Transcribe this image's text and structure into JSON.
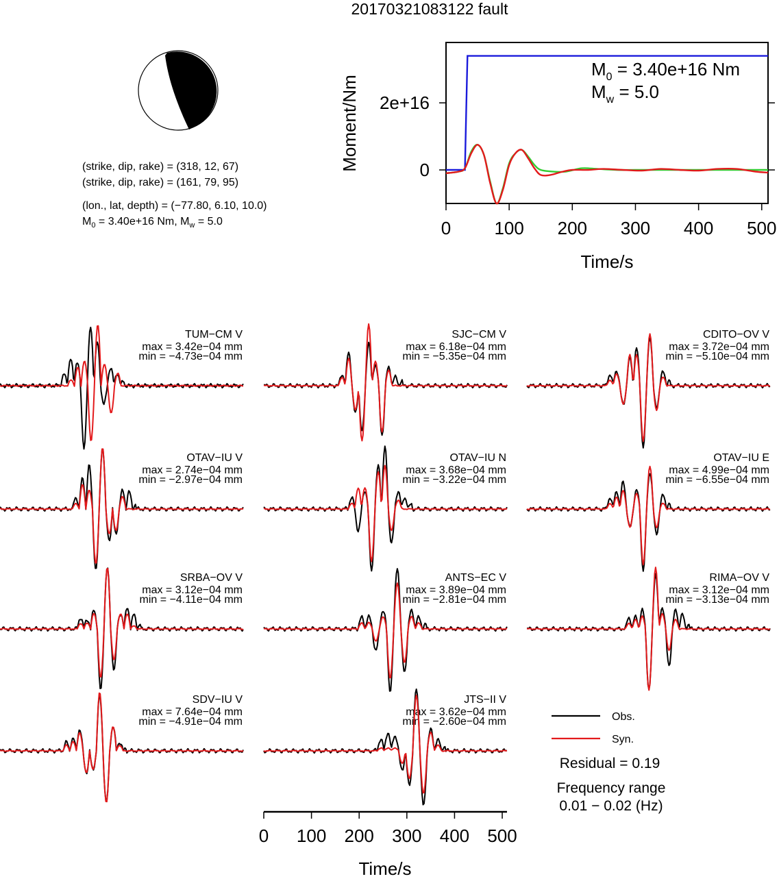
{
  "title": "20170321083122 fault",
  "mechanism": {
    "plane1": "(strike, dip, rake) = (318, 12, 67)",
    "plane2": "(strike, dip, rake) = (161, 79, 95)",
    "location": "(lon., lat, depth) = (−77.80, 6.10, 10.0)",
    "m0_prefix": "M",
    "m0_sub": "0",
    "m0_rest": " = 3.40e+16 Nm, M",
    "mw_sub": "w",
    "mw_rest": " = 5.0"
  },
  "legend": {
    "obs": "Obs.",
    "syn": "Syn."
  },
  "residual": "Residual = 0.19",
  "freq_title": "Frequency range",
  "freq_value": "0.01 − 0.02 (Hz)",
  "colors": {
    "obs": "#000000",
    "syn": "#e31a1c",
    "stf": "#1a1adb",
    "green": "#33cc33"
  },
  "chart_data": [
    {
      "type": "line",
      "name": "moment-rate-function",
      "ylabel": "Moment/Nm",
      "xlabel": "Time/s",
      "xlim": [
        0,
        510
      ],
      "ylim": [
        -1e+16,
        3.8e+16
      ],
      "xticks": [
        0,
        100,
        200,
        300,
        400,
        500
      ],
      "xtick_labels": [
        "0",
        "100",
        "200",
        "300",
        "400",
        "500"
      ],
      "yticks": [
        0,
        2e+16
      ],
      "ytick_labels": [
        "0",
        "2e+16"
      ],
      "annotation": {
        "m0_prefix": "M",
        "m0_sub": "0",
        "m0_rest": " = 3.40e+16 Nm",
        "mw_prefix": "M",
        "mw_sub": "w",
        "mw_rest": " = 5.0"
      },
      "series": [
        {
          "color": "#1a1adb",
          "x": [
            0,
            30,
            32,
            34,
            510
          ],
          "y": [
            0,
            0,
            1.8e+16,
            3.4e+16,
            3.4e+16
          ]
        },
        {
          "color": "#33cc33",
          "x": [
            0,
            20,
            30,
            40,
            50,
            60,
            70,
            80,
            90,
            100,
            110,
            120,
            130,
            140,
            150,
            170,
            190,
            215,
            240,
            270,
            300,
            340,
            380,
            420,
            460,
            510
          ],
          "y": [
            -1000000000000000.0,
            -500000000000000.0,
            500000000000000.0,
            5500000000000000.0,
            7500000000000000.0,
            4500000000000000.0,
            -3500000000000000.0,
            -1e+16,
            -5500000000000000.0,
            2000000000000000.0,
            5000000000000000.0,
            6000000000000000.0,
            4000000000000000.0,
            1500000000000000.0,
            0.0,
            -500000000000000.0,
            -500000000000000.0,
            500000000000000.0,
            300000000000000.0,
            0.0,
            0.0,
            0.0,
            0.0,
            0.0,
            0.0,
            0.0
          ]
        },
        {
          "color": "#e31a1c",
          "x": [
            0,
            20,
            30,
            40,
            50,
            60,
            70,
            80,
            90,
            100,
            110,
            120,
            130,
            140,
            150,
            165,
            185,
            200,
            225,
            250,
            280,
            310,
            340,
            370,
            400,
            430,
            460,
            490,
            510
          ],
          "y": [
            -1000000000000000.0,
            -500000000000000.0,
            500000000000000.0,
            5000000000000000.0,
            7500000000000000.0,
            4500000000000000.0,
            -4000000000000000.0,
            -1e+16,
            -6000000000000000.0,
            1500000000000000.0,
            5000000000000000.0,
            6000000000000000.0,
            3500000000000000.0,
            500000000000000.0,
            -1500000000000000.0,
            -1500000000000000.0,
            -500000000000000.0,
            0.0,
            0.0,
            300000000000000.0,
            0.0,
            -200000000000000.0,
            300000000000000.0,
            0.0,
            -200000000000000.0,
            300000000000000.0,
            300000000000000.0,
            -500000000000000.0,
            -800000000000000.0
          ]
        }
      ]
    },
    {
      "type": "line",
      "name": "waveform-fits",
      "xlabel": "Time/s",
      "xlim": [
        0,
        510
      ],
      "xticks": [
        0,
        100,
        200,
        300,
        400,
        500
      ],
      "xtick_labels": [
        "0",
        "100",
        "200",
        "300",
        "400",
        "500"
      ],
      "stations": [
        {
          "label": "TUM−CM V",
          "max": "max = 3.42e−04 mm",
          "min": "min = −4.73e−04 mm",
          "obs": {
            "c": 190,
            "w": 14,
            "s": [
              0.01,
              0.2,
              0.45,
              0.4,
              -1.0,
              0.95,
              0.7,
              -0.3,
              0.3,
              0.22,
              0.1
            ]
          },
          "syn": {
            "c": 205,
            "w": 14,
            "s": [
              0.0,
              0.1,
              0.3,
              0.4,
              -0.9,
              1.0,
              0.35,
              -0.45,
              0.2,
              0.0,
              0.0
            ]
          }
        },
        {
          "label": "SJC−CM V",
          "max": "max = 6.18e−04 mm",
          "min": "min = −5.35e−04 mm",
          "obs": {
            "c": 220,
            "w": 14,
            "s": [
              0.01,
              0.2,
              0.55,
              -0.45,
              -0.75,
              0.7,
              0.35,
              -0.8,
              0.3,
              0.15,
              0.1
            ]
          },
          "syn": {
            "c": 220,
            "w": 14,
            "s": [
              0.0,
              0.15,
              0.45,
              -0.4,
              -0.9,
              1.0,
              0.4,
              -0.75,
              0.25,
              0.0,
              0.0
            ]
          }
        },
        {
          "label": "CDITO−OV V",
          "max": "max = 3.72e−04 mm",
          "min": "min = −5.10e−04 mm",
          "obs": {
            "c": 230,
            "w": 14,
            "s": [
              0.01,
              0.2,
              0.25,
              -0.3,
              0.45,
              0.6,
              -1.0,
              0.8,
              -0.35,
              0.25,
              0.1
            ]
          },
          "syn": {
            "c": 230,
            "w": 14,
            "s": [
              0.0,
              0.1,
              0.2,
              -0.3,
              0.5,
              0.5,
              -0.9,
              0.85,
              -0.4,
              0.15,
              0.0
            ]
          }
        },
        {
          "label": "OTAV−IU V",
          "max": "max = 2.74e−04 mm",
          "min": "min = −2.97e−04 mm",
          "obs": {
            "c": 215,
            "w": 14,
            "s": [
              0.01,
              0.2,
              0.5,
              0.7,
              -1.0,
              1.0,
              -0.5,
              -0.4,
              0.3,
              0.3,
              0.1
            ]
          },
          "syn": {
            "c": 215,
            "w": 14,
            "s": [
              0.0,
              0.1,
              0.4,
              0.3,
              -0.9,
              1.0,
              -0.4,
              -0.35,
              0.2,
              0.0,
              0.0
            ]
          }
        },
        {
          "label": "OTAV−IU N",
          "max": "max = 3.68e−04 mm",
          "min": "min = −3.22e−04 mm",
          "obs": {
            "c": 240,
            "w": 14,
            "s": [
              0.01,
              0.2,
              -0.35,
              0.3,
              -1.0,
              0.7,
              1.0,
              -0.55,
              0.3,
              0.2,
              0.1
            ]
          },
          "syn": {
            "c": 240,
            "w": 14,
            "s": [
              0.0,
              0.1,
              0.35,
              0.35,
              -0.85,
              0.6,
              0.7,
              -0.35,
              0.15,
              0.0,
              0.0
            ]
          }
        },
        {
          "label": "OTAV−IU E",
          "max": "max = 4.99e−04 mm",
          "min": "min = −6.55e−04 mm",
          "obs": {
            "c": 230,
            "w": 14,
            "s": [
              0.01,
              0.2,
              0.3,
              0.45,
              -0.3,
              0.3,
              -1.0,
              0.6,
              -0.4,
              0.25,
              0.1
            ]
          },
          "syn": {
            "c": 230,
            "w": 14,
            "s": [
              0.0,
              0.1,
              0.2,
              0.3,
              -0.3,
              0.25,
              -0.9,
              0.7,
              -0.3,
              0.1,
              0.0
            ]
          }
        },
        {
          "label": "SRBA−OV V",
          "max": "max = 3.12e−04 mm",
          "min": "min = −4.11e−04 mm",
          "obs": {
            "c": 225,
            "w": 14,
            "s": [
              0.01,
              0.2,
              0.15,
              0.3,
              -1.0,
              1.0,
              -0.65,
              0.25,
              0.35,
              0.25,
              0.1
            ]
          },
          "syn": {
            "c": 225,
            "w": 14,
            "s": [
              0.0,
              0.1,
              0.1,
              0.25,
              -0.8,
              1.0,
              -0.5,
              0.25,
              0.25,
              0.05,
              0.0
            ]
          }
        },
        {
          "label": "ANTS−EC V",
          "max": "max = 3.89e−04 mm",
          "min": "min = −2.81e−04 mm",
          "obs": {
            "c": 265,
            "w": 15,
            "s": [
              0.01,
              0.2,
              0.2,
              -0.35,
              0.3,
              -1.0,
              1.0,
              -0.7,
              0.3,
              0.2,
              0.1
            ]
          },
          "syn": {
            "c": 265,
            "w": 15,
            "s": [
              0.0,
              0.1,
              0.1,
              -0.2,
              0.2,
              -0.8,
              0.75,
              -0.55,
              0.2,
              0.1,
              0.0
            ]
          }
        },
        {
          "label": "RIMA−OV V",
          "max": "max = 3.12e−04 mm",
          "min": "min = −3.13e−04 mm",
          "obs": {
            "c": 270,
            "w": 14,
            "s": [
              0.01,
              0.2,
              0.2,
              0.3,
              -1.0,
              0.9,
              0.35,
              -0.6,
              0.3,
              0.25,
              0.1
            ]
          },
          "syn": {
            "c": 270,
            "w": 14,
            "s": [
              0.0,
              0.1,
              0.15,
              0.2,
              -1.0,
              1.0,
              0.25,
              -0.35,
              0.15,
              0.0,
              0.0
            ]
          }
        },
        {
          "label": "SDV−IU V",
          "max": "max = 7.64e−04 mm",
          "min": "min = −4.91e−04 mm",
          "obs": {
            "c": 195,
            "w": 14,
            "s": [
              0.01,
              0.15,
              0.2,
              0.35,
              -0.35,
              -0.3,
              0.9,
              -0.85,
              0.4,
              0.15,
              0.05
            ]
          },
          "syn": {
            "c": 195,
            "w": 14,
            "s": [
              0.0,
              0.1,
              0.15,
              0.3,
              -0.35,
              -0.3,
              0.95,
              -0.85,
              0.4,
              0.1,
              0.0
            ]
          }
        },
        {
          "label": "JTS−II V",
          "max": "max = 3.62e−04 mm",
          "min": "min = −2.60e−04 mm",
          "obs": {
            "c": 305,
            "w": 15,
            "s": [
              0.01,
              0.2,
              0.3,
              0.25,
              -0.3,
              -0.55,
              1.0,
              -0.9,
              0.35,
              0.2,
              0.1
            ]
          },
          "syn": {
            "c": 305,
            "w": 15,
            "s": [
              0.0,
              0.05,
              0.05,
              0.05,
              -0.2,
              -0.45,
              0.9,
              -0.7,
              0.3,
              0.1,
              0.0
            ]
          }
        }
      ]
    }
  ]
}
